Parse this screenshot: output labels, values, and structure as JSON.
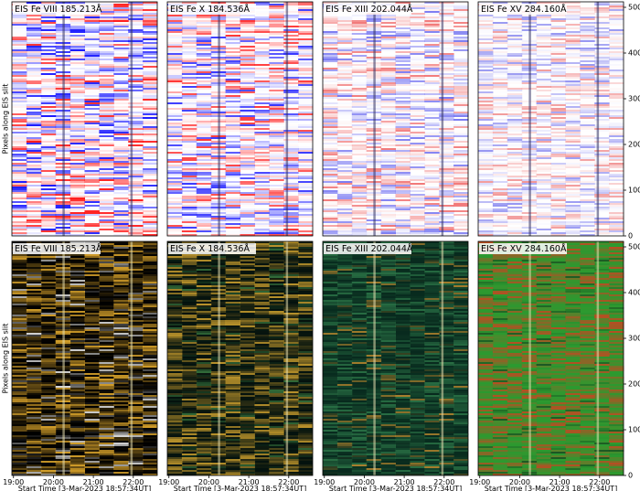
{
  "chart_data": [
    {
      "type": "heatmap",
      "title": "EIS Fe VIII 185.213Å",
      "ylabel": "Pixels along EIS slit",
      "colors": [
        "#ffffff",
        "#ff0000",
        "#0000ff"
      ],
      "xlim": [
        18.96,
        22.6
      ],
      "ylim": [
        0,
        512
      ]
    },
    {
      "type": "heatmap",
      "title": "EIS Fe X 184.536Å",
      "colors": [
        "#ffffff",
        "#ff2020",
        "#2020ff"
      ],
      "xlim": [
        18.96,
        22.6
      ],
      "ylim": [
        0,
        512
      ]
    },
    {
      "type": "heatmap",
      "title": "EIS Fe XIII 202.044Å",
      "colors": [
        "#ffffff",
        "#f06a6a",
        "#6a6af0"
      ],
      "xlim": [
        18.96,
        22.6
      ],
      "ylim": [
        0,
        512
      ]
    },
    {
      "type": "heatmap",
      "title": "EIS Fe XV 284.160Å",
      "colors": [
        "#ffffff",
        "#f08a8a",
        "#8a8af0"
      ],
      "xlim": [
        18.96,
        22.6
      ],
      "ylim": [
        0,
        512
      ],
      "yticks": [
        0,
        100,
        200,
        300,
        400,
        500
      ]
    },
    {
      "type": "heatmap",
      "title": "EIS Fe VIII 185.213Å",
      "ylabel": "Pixels along EIS slit",
      "xlabel": "Start Time [3-Mar-2023 18:57:34UT]",
      "colors": [
        "#000000",
        "#f5b830",
        "#ffffff"
      ],
      "xlim": [
        18.96,
        22.6
      ],
      "ylim": [
        0,
        512
      ],
      "xticks": [
        {
          "value": 19,
          "label": "19:00"
        },
        {
          "value": 20,
          "label": "20:00"
        },
        {
          "value": 21,
          "label": "21:00"
        },
        {
          "value": 22,
          "label": "22:00"
        }
      ]
    },
    {
      "type": "heatmap",
      "title": "EIS Fe X 184.536Å",
      "xlabel": "Start Time [3-Mar-2023 18:57:34UT]",
      "colors": [
        "#04120e",
        "#d8a830",
        "#3a7a40"
      ],
      "xlim": [
        18.96,
        22.6
      ],
      "ylim": [
        0,
        512
      ],
      "xticks": [
        {
          "value": 19,
          "label": "19:00"
        },
        {
          "value": 20,
          "label": "20:00"
        },
        {
          "value": 21,
          "label": "21:00"
        },
        {
          "value": 22,
          "label": "22:00"
        }
      ]
    },
    {
      "type": "heatmap",
      "title": "EIS Fe XIII 202.044Å",
      "xlabel": "Start Time [3-Mar-2023 18:57:34UT]",
      "colors": [
        "#082a1e",
        "#2e7a4a",
        "#c89030"
      ],
      "xlim": [
        18.96,
        22.6
      ],
      "ylim": [
        0,
        512
      ],
      "xticks": [
        {
          "value": 19,
          "label": "19:00"
        },
        {
          "value": 20,
          "label": "20:00"
        },
        {
          "value": 21,
          "label": "21:00"
        },
        {
          "value": 22,
          "label": "22:00"
        }
      ]
    },
    {
      "type": "heatmap",
      "title": "EIS Fe XV 284.160Å",
      "xlabel": "Start Time [3-Mar-2023 18:57:34UT]",
      "colors": [
        "#2c9a30",
        "#d04020",
        "#1a4a20"
      ],
      "xlim": [
        18.96,
        22.6
      ],
      "ylim": [
        0,
        512
      ],
      "yticks": [
        0,
        100,
        200,
        300,
        400,
        500
      ],
      "xticks": [
        {
          "value": 19,
          "label": "19:00"
        },
        {
          "value": 20,
          "label": "20:00"
        },
        {
          "value": 21,
          "label": "21:00"
        },
        {
          "value": 22,
          "label": "22:00"
        }
      ]
    }
  ]
}
